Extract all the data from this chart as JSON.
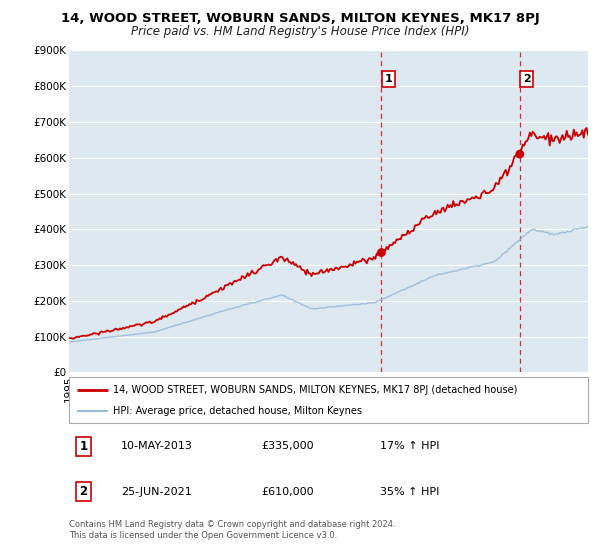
{
  "title": "14, WOOD STREET, WOBURN SANDS, MILTON KEYNES, MK17 8PJ",
  "subtitle": "Price paid vs. HM Land Registry's House Price Index (HPI)",
  "legend_property": "14, WOOD STREET, WOBURN SANDS, MILTON KEYNES, MK17 8PJ (detached house)",
  "legend_hpi": "HPI: Average price, detached house, Milton Keynes",
  "annotation1_date": "10-MAY-2013",
  "annotation1_price": "£335,000",
  "annotation1_hpi": "17% ↑ HPI",
  "annotation2_date": "25-JUN-2021",
  "annotation2_price": "£610,000",
  "annotation2_hpi": "35% ↑ HPI",
  "footer1": "Contains HM Land Registry data © Crown copyright and database right 2024.",
  "footer2": "This data is licensed under the Open Government Licence v3.0.",
  "property_color": "#cc0000",
  "hpi_color": "#99bbdd",
  "marker_color": "#cc0000",
  "dashed_line_color": "#cc0000",
  "background_color": "#ffffff",
  "plot_bg_color": "#dde8f0",
  "grid_color": "#ffffff",
  "ylim": [
    0,
    900000
  ],
  "yticks": [
    0,
    100000,
    200000,
    300000,
    400000,
    500000,
    600000,
    700000,
    800000,
    900000
  ],
  "xlim_start": 1995.0,
  "xlim_end": 2025.5,
  "sale1_x": 2013.36,
  "sale1_y": 335000,
  "sale2_x": 2021.49,
  "sale2_y": 610000,
  "title_fontsize": 9.5,
  "subtitle_fontsize": 8.5,
  "tick_fontsize": 7.5,
  "legend_fontsize": 7.5,
  "annotation_fontsize": 8
}
